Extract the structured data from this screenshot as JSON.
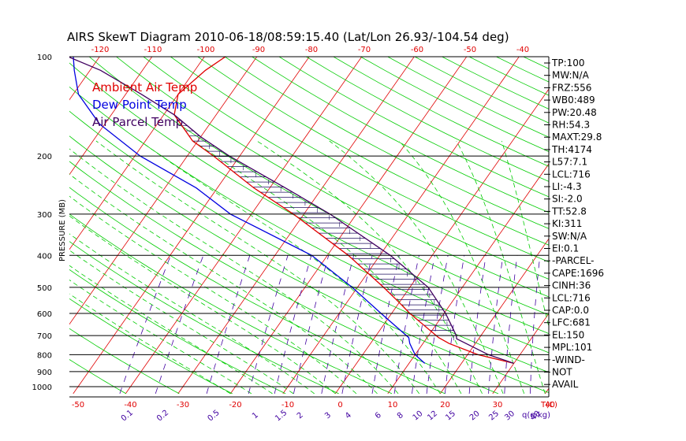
{
  "title": "AIRS SkewT Diagram 2010-06-18/08:59:15.40 (Lat/Lon 26.93/-104.54 deg)",
  "colors": {
    "ambient": "#e00000",
    "dewpoint": "#0000e0",
    "parcel": "#400060",
    "isotherm": "#e00000",
    "dry_adiabat": "#00cc00",
    "moist_adiabat": "#00cc00",
    "mixing_ratio": "#4000a0",
    "hatch": "#201060"
  },
  "legend": [
    {
      "label": "Ambient Air Temp",
      "color": "#e00000"
    },
    {
      "label": "Dew Point Temp",
      "color": "#0000e0"
    },
    {
      "label": "Air Parcel Temp",
      "color": "#400060"
    }
  ],
  "indices": [
    "TP:100",
    "MW:N/A",
    "FRZ:556",
    "WB0:489",
    "PW:20.48",
    "RH:54.3",
    "MAXT:29.8",
    "TH:4174",
    "L57:7.1",
    "LCL:716",
    "LI:-4.3",
    "SI:-2.0",
    "TT:52.8",
    "KI:311",
    "SW:N/A",
    "EI:0.1",
    "-PARCEL-",
    "CAPE:1696",
    "CINH:36",
    "LCL:716",
    "CAP:0.0",
    "LFC:681",
    "EL:150",
    "MPL:101",
    "-WIND-",
    "NOT",
    "AVAIL"
  ],
  "chart_data": {
    "type": "line",
    "chart_kind": "skew-T log-p",
    "ylabel": "PRESSURE (MB)",
    "ylim": [
      1000,
      100
    ],
    "y_scale": "log",
    "pressure_ticks": [
      100,
      200,
      300,
      400,
      500,
      600,
      700,
      800,
      900,
      1000
    ],
    "bottom_temp_ticks": [
      -50,
      -40,
      -30,
      -20,
      -10,
      0,
      10,
      20,
      30,
      40
    ],
    "top_temp_ticks": [
      -120,
      -110,
      -100,
      -90,
      -80,
      -70,
      -60,
      -50,
      -40
    ],
    "temp_axis_label": "T(C)",
    "mixing_ratio_ticks": [
      "0.1",
      "0.2",
      "0.5",
      "1",
      "1.5",
      "2",
      "3",
      "4",
      "6",
      "8",
      "10",
      "12",
      "15",
      "20",
      "25",
      "30",
      "40"
    ],
    "mixing_ratio_label": "q(g/kg)",
    "series": [
      {
        "name": "Ambient Air Temp",
        "color": "#e00000",
        "points": [
          [
            850,
            30.0
          ],
          [
            800,
            22.0
          ],
          [
            740,
            15.0
          ],
          [
            710,
            12.2
          ],
          [
            600,
            3.5
          ],
          [
            550,
            -0.5
          ],
          [
            500,
            -5.0
          ],
          [
            400,
            -16.0
          ],
          [
            300,
            -32.0
          ],
          [
            250,
            -43.0
          ],
          [
            200,
            -55.0
          ],
          [
            180,
            -61.0
          ],
          [
            150,
            -68.0
          ],
          [
            130,
            -70.0
          ],
          [
            110,
            -68.0
          ],
          [
            100,
            -66.0
          ]
        ]
      },
      {
        "name": "Dew Point Temp",
        "color": "#0000e0",
        "points": [
          [
            850,
            13.0
          ],
          [
            800,
            10.0
          ],
          [
            740,
            7.5
          ],
          [
            710,
            6.5
          ],
          [
            600,
            -2.0
          ],
          [
            500,
            -11.0
          ],
          [
            400,
            -23.0
          ],
          [
            300,
            -44.0
          ],
          [
            250,
            -54.0
          ],
          [
            200,
            -69.0
          ],
          [
            160,
            -81.0
          ],
          [
            130,
            -89.0
          ],
          [
            110,
            -93.0
          ],
          [
            100,
            -95.0
          ]
        ]
      },
      {
        "name": "Air Parcel Temp",
        "color": "#400060",
        "points": [
          [
            850,
            30.0
          ],
          [
            800,
            24.0
          ],
          [
            716,
            15.8
          ],
          [
            700,
            15.3
          ],
          [
            600,
            10.3
          ],
          [
            500,
            3.5
          ],
          [
            400,
            -8.0
          ],
          [
            300,
            -25.0
          ],
          [
            250,
            -37.0
          ],
          [
            200,
            -52.0
          ],
          [
            175,
            -60.0
          ],
          [
            150,
            -68.0
          ],
          [
            130,
            -77.0
          ],
          [
            110,
            -88.0
          ],
          [
            100,
            -96.0
          ]
        ]
      }
    ]
  }
}
